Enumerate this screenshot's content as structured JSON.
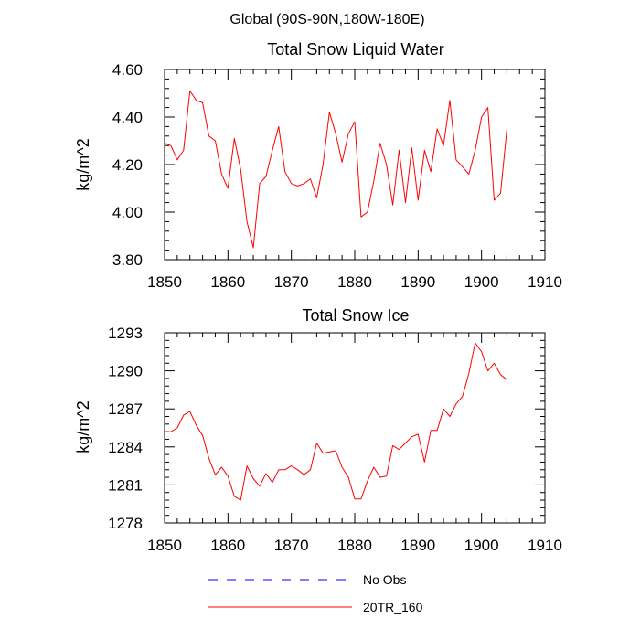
{
  "figure": {
    "suptitle": "Global (90S-90N,180W-180E)"
  },
  "chart_data": [
    {
      "type": "line",
      "title": "Total Snow Liquid Water",
      "xlabel": "",
      "ylabel": "kg/m^2",
      "xlim": [
        1850,
        1910
      ],
      "ylim": [
        3.8,
        4.6
      ],
      "xticks": [
        1850,
        1860,
        1870,
        1880,
        1890,
        1900,
        1910
      ],
      "xtick_labels": [
        "1850",
        "1860",
        "1870",
        "1880",
        "1890",
        "1900",
        "1910"
      ],
      "yticks": [
        3.8,
        4.0,
        4.2,
        4.4,
        4.6
      ],
      "ytick_labels": [
        "3.80",
        "4.00",
        "4.20",
        "4.40",
        "4.60"
      ],
      "series": [
        {
          "name": "20TR_160",
          "color": "#ff0000",
          "x": [
            1850,
            1851,
            1852,
            1853,
            1854,
            1855,
            1856,
            1857,
            1858,
            1859,
            1860,
            1861,
            1862,
            1863,
            1864,
            1865,
            1866,
            1867,
            1868,
            1869,
            1870,
            1871,
            1872,
            1873,
            1874,
            1875,
            1876,
            1877,
            1878,
            1879,
            1880,
            1881,
            1882,
            1883,
            1884,
            1885,
            1886,
            1887,
            1888,
            1889,
            1890,
            1891,
            1892,
            1893,
            1894,
            1895,
            1896,
            1897,
            1898,
            1899,
            1900,
            1901,
            1902,
            1903,
            1904
          ],
          "values": [
            4.29,
            4.28,
            4.22,
            4.26,
            4.51,
            4.47,
            4.46,
            4.32,
            4.3,
            4.16,
            4.1,
            4.31,
            4.18,
            3.96,
            3.85,
            4.12,
            4.15,
            4.26,
            4.36,
            4.17,
            4.12,
            4.11,
            4.12,
            4.14,
            4.06,
            4.2,
            4.42,
            4.33,
            4.21,
            4.33,
            4.38,
            3.98,
            4.0,
            4.13,
            4.29,
            4.2,
            4.03,
            4.26,
            4.04,
            4.27,
            4.05,
            4.26,
            4.17,
            4.35,
            4.28,
            4.47,
            4.22,
            4.19,
            4.16,
            4.26,
            4.4,
            4.44,
            4.05,
            4.08,
            4.35
          ]
        }
      ]
    },
    {
      "type": "line",
      "title": "Total Snow Ice",
      "xlabel": "",
      "ylabel": "kg/m^2",
      "xlim": [
        1850,
        1910
      ],
      "ylim": [
        1278,
        1293
      ],
      "xticks": [
        1850,
        1860,
        1870,
        1880,
        1890,
        1900,
        1910
      ],
      "xtick_labels": [
        "1850",
        "1860",
        "1870",
        "1880",
        "1890",
        "1900",
        "1910"
      ],
      "yticks": [
        1278,
        1281,
        1284,
        1287,
        1290,
        1293
      ],
      "ytick_labels": [
        "1278",
        "1281",
        "1284",
        "1287",
        "1290",
        "1293"
      ],
      "series": [
        {
          "name": "20TR_160",
          "color": "#ff0000",
          "x": [
            1850,
            1851,
            1852,
            1853,
            1854,
            1855,
            1856,
            1857,
            1858,
            1859,
            1860,
            1861,
            1862,
            1863,
            1864,
            1865,
            1866,
            1867,
            1868,
            1869,
            1870,
            1871,
            1872,
            1873,
            1874,
            1875,
            1876,
            1877,
            1878,
            1879,
            1880,
            1881,
            1882,
            1883,
            1884,
            1885,
            1886,
            1887,
            1888,
            1889,
            1890,
            1891,
            1892,
            1893,
            1894,
            1895,
            1896,
            1897,
            1898,
            1899,
            1900,
            1901,
            1902,
            1903,
            1904
          ],
          "values": [
            1285.2,
            1285.2,
            1285.5,
            1286.5,
            1286.8,
            1285.7,
            1284.9,
            1283.1,
            1281.8,
            1282.4,
            1281.7,
            1280.1,
            1279.8,
            1282.5,
            1281.5,
            1280.9,
            1281.9,
            1281.2,
            1282.2,
            1282.2,
            1282.5,
            1282.2,
            1281.8,
            1282.2,
            1284.3,
            1283.5,
            1283.6,
            1283.7,
            1282.4,
            1281.6,
            1279.9,
            1279.9,
            1281.3,
            1282.4,
            1281.6,
            1281.7,
            1284.1,
            1283.8,
            1284.3,
            1284.8,
            1285.0,
            1282.8,
            1285.3,
            1285.3,
            1287.0,
            1286.4,
            1287.4,
            1288.0,
            1289.8,
            1292.2,
            1291.5,
            1290.0,
            1290.6,
            1289.7,
            1289.3
          ]
        }
      ]
    }
  ],
  "legend": {
    "placement": "bottom-center",
    "entries": [
      {
        "label": "No Obs",
        "color": "#0000ff",
        "style": "dashed"
      },
      {
        "label": "20TR_160",
        "color": "#ff0000",
        "style": "solid"
      }
    ]
  }
}
